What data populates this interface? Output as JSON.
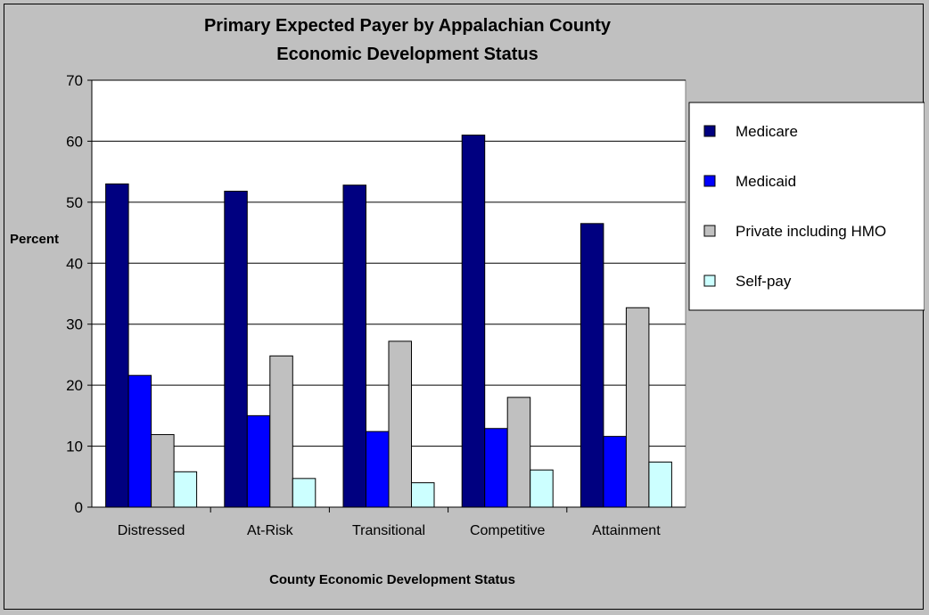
{
  "chart_data": {
    "type": "bar",
    "title": "Primary Expected Payer by Appalachian County Economic Development Status",
    "title_lines": [
      "Primary Expected Payer by Appalachian County",
      "Economic Development Status"
    ],
    "xlabel": "County Economic Development Status",
    "ylabel": "Percent",
    "categories": [
      "Distressed",
      "At-Risk",
      "Transitional",
      "Competitive",
      "Attainment"
    ],
    "ylim": [
      0,
      70
    ],
    "yticks": [
      0,
      10,
      20,
      30,
      40,
      50,
      60,
      70
    ],
    "grid": true,
    "legend_position": "right",
    "series": [
      {
        "name": "Medicare",
        "color": "#000080",
        "values": [
          53.0,
          51.8,
          52.8,
          61.0,
          46.5
        ]
      },
      {
        "name": "Medicaid",
        "color": "#0000ff",
        "values": [
          21.6,
          15.0,
          12.4,
          12.9,
          11.6
        ]
      },
      {
        "name": "Private including HMO",
        "color": "#c0c0c0",
        "values": [
          11.9,
          24.8,
          27.2,
          18.0,
          32.7
        ]
      },
      {
        "name": "Self-pay",
        "color": "#ccffff",
        "values": [
          5.8,
          4.7,
          4.0,
          6.1,
          7.4
        ]
      }
    ]
  }
}
